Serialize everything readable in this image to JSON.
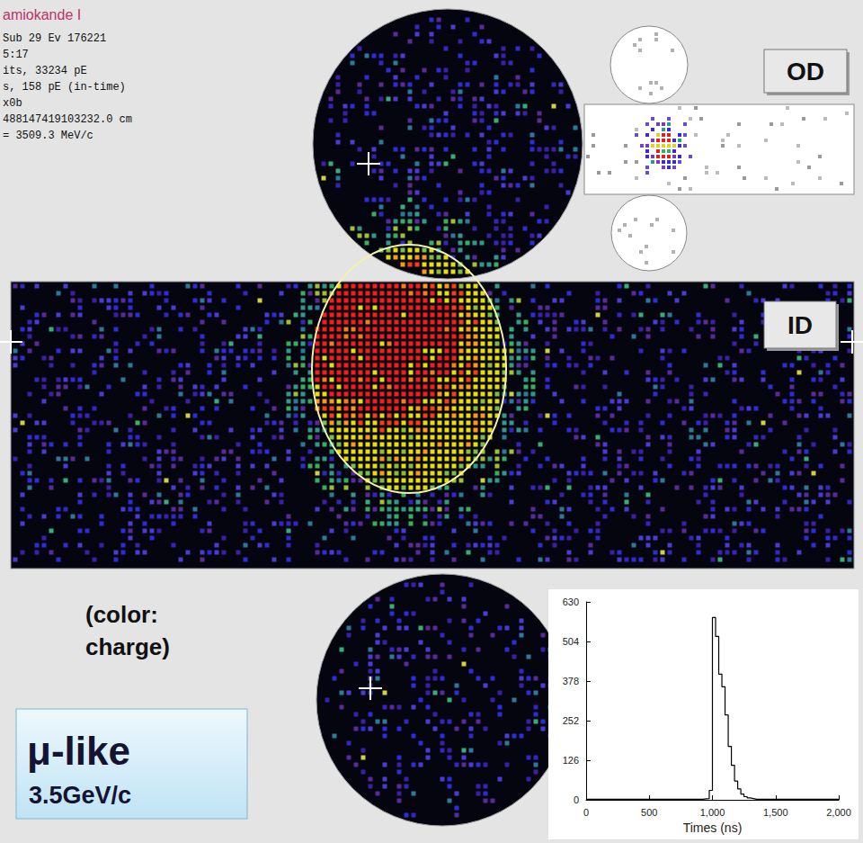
{
  "header": {
    "title": "amiokande I",
    "lines": [
      "Sub 29 Ev 176221",
      "5:17",
      "its, 33234 pE",
      "s, 158 pE (in-time)",
      "x0b",
      "488147419103232.0 cm",
      "= 3509.3 MeV/c"
    ]
  },
  "panels": {
    "outer_detector": "OD",
    "inner_detector": "ID"
  },
  "color_note": "(color: charge)",
  "badge": {
    "title": "μ-like",
    "subtitle": "3.5GeV/c"
  },
  "chart_data": {
    "type": "histogram",
    "xlabel": "Times (ns)",
    "color": "#000000",
    "bins": [
      0,
      25,
      50,
      75,
      100,
      125,
      150,
      175,
      200,
      225,
      250,
      275,
      300,
      325,
      350,
      375,
      400,
      425,
      450,
      475,
      500,
      525,
      550,
      575,
      600,
      625,
      650,
      675,
      700,
      725,
      750,
      775,
      800,
      825,
      850,
      875,
      900,
      925,
      950,
      975,
      1000,
      1025,
      1050,
      1075,
      1100,
      1125,
      1150,
      1175,
      1200,
      1225,
      1250,
      1275,
      1300,
      1325,
      1350,
      1375,
      1400,
      1425,
      1450,
      1475,
      1500,
      1525,
      1550,
      1575,
      1600,
      1625,
      1650,
      1675,
      1700,
      1725,
      1750,
      1775,
      1800,
      1825,
      1850,
      1875,
      1900,
      1925,
      1950,
      1975,
      2000
    ],
    "counts": [
      2,
      2,
      2,
      2,
      2,
      2,
      2,
      2,
      2,
      2,
      2,
      2,
      2,
      2,
      2,
      2,
      2,
      2,
      2,
      2,
      2,
      2,
      2,
      2,
      2,
      2,
      2,
      2,
      2,
      2,
      2,
      2,
      2,
      2,
      2,
      2,
      2,
      3,
      4,
      30,
      580,
      520,
      400,
      360,
      270,
      170,
      110,
      60,
      35,
      18,
      10,
      6,
      4,
      2,
      2,
      2,
      2,
      2,
      2,
      2,
      2,
      2,
      2,
      2,
      2,
      2,
      2,
      2,
      2,
      2,
      2,
      2,
      2,
      2,
      2,
      2,
      2,
      2,
      2,
      2
    ],
    "xlim": [
      0,
      2000
    ],
    "xticks": [
      0,
      500,
      1000,
      1500,
      2000
    ],
    "ylim": [
      0,
      630
    ],
    "yticks": [
      0,
      126,
      252,
      378,
      504,
      630
    ],
    "grid": false
  }
}
